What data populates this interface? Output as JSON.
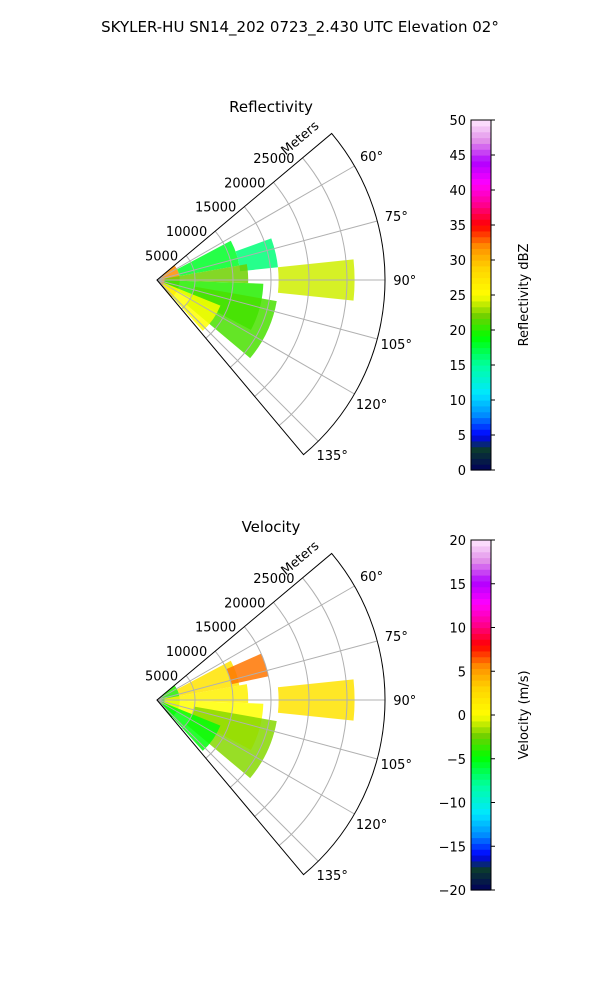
{
  "figure": {
    "suptitle": "SKYLER-HU  SN14_202  0723_2.430 UTC Elevation 02°"
  },
  "chart_data": [
    {
      "type": "polar-sector",
      "title": "Reflectivity",
      "radial_axis_label": "Meters",
      "theta_range_deg": [
        50,
        140
      ],
      "r_max": 30000,
      "r_ticks": [
        5000,
        10000,
        15000,
        20000,
        25000
      ],
      "r_tick_labels": [
        "5000",
        "10000",
        "15000",
        "20000",
        "25000"
      ],
      "theta_ticks": [
        60,
        75,
        90,
        105,
        120,
        135
      ],
      "theta_tick_labels": [
        "60°",
        "75°",
        "90°",
        "105°",
        "120°",
        "135°"
      ],
      "grid": true,
      "colorbar": {
        "label": "Reflectivity dBZ",
        "min": 0,
        "max": 50,
        "ticks": [
          0,
          5,
          10,
          15,
          20,
          25,
          30,
          35,
          40,
          45,
          50
        ],
        "tick_labels": [
          "0",
          "5",
          "10",
          "15",
          "20",
          "25",
          "30",
          "35",
          "40",
          "45",
          "50"
        ]
      },
      "echo_regions": [
        {
          "theta": [
            50,
            140
          ],
          "r": [
            0,
            3000
          ],
          "value": 32
        },
        {
          "theta": [
            62,
            80
          ],
          "r": [
            3000,
            11000
          ],
          "value": 18
        },
        {
          "theta": [
            70,
            84
          ],
          "r": [
            11000,
            16000
          ],
          "value": 16
        },
        {
          "theta": [
            80,
            92
          ],
          "r": [
            1000,
            12000
          ],
          "value": 22
        },
        {
          "theta": [
            92,
            118
          ],
          "r": [
            1000,
            14000
          ],
          "value": 20
        },
        {
          "theta": [
            100,
            130
          ],
          "r": [
            5000,
            16000
          ],
          "value": 21
        },
        {
          "theta": [
            112,
            138
          ],
          "r": [
            1000,
            9000
          ],
          "value": 25
        },
        {
          "theta": [
            84,
            96
          ],
          "r": [
            16000,
            26000
          ],
          "value": 24
        }
      ]
    },
    {
      "type": "polar-sector",
      "title": "Velocity",
      "radial_axis_label": "Meters",
      "theta_range_deg": [
        50,
        140
      ],
      "r_max": 30000,
      "r_ticks": [
        5000,
        10000,
        15000,
        20000,
        25000
      ],
      "r_tick_labels": [
        "5000",
        "10000",
        "15000",
        "20000",
        "25000"
      ],
      "theta_ticks": [
        60,
        75,
        90,
        105,
        120,
        135
      ],
      "theta_tick_labels": [
        "60°",
        "75°",
        "90°",
        "105°",
        "120°",
        "135°"
      ],
      "grid": true,
      "colorbar": {
        "label": "Velocity (m/s)",
        "min": -20,
        "max": 20,
        "ticks": [
          -20,
          -15,
          -10,
          -5,
          0,
          5,
          10,
          15,
          20
        ],
        "tick_labels": [
          "−20",
          "−15",
          "−10",
          "−5",
          "0",
          "5",
          "10",
          "15",
          "20"
        ]
      },
      "echo_regions": [
        {
          "theta": [
            50,
            140
          ],
          "r": [
            0,
            3000
          ],
          "value": -4
        },
        {
          "theta": [
            62,
            80
          ],
          "r": [
            3000,
            11000
          ],
          "value": 2
        },
        {
          "theta": [
            66,
            78
          ],
          "r": [
            10000,
            15000
          ],
          "value": 6
        },
        {
          "theta": [
            80,
            92
          ],
          "r": [
            1000,
            12000
          ],
          "value": 1
        },
        {
          "theta": [
            92,
            118
          ],
          "r": [
            1000,
            14000
          ],
          "value": 0
        },
        {
          "theta": [
            100,
            130
          ],
          "r": [
            5000,
            16000
          ],
          "value": -2
        },
        {
          "theta": [
            112,
            138
          ],
          "r": [
            1000,
            9000
          ],
          "value": -5
        },
        {
          "theta": [
            84,
            96
          ],
          "r": [
            16000,
            26000
          ],
          "value": 2
        }
      ]
    }
  ],
  "colormap": [
    {
      "stop": 0.0,
      "color": "#00005a"
    },
    {
      "stop": 0.06,
      "color": "#0b3b2e"
    },
    {
      "stop": 0.1,
      "color": "#0000ff"
    },
    {
      "stop": 0.16,
      "color": "#0090ff"
    },
    {
      "stop": 0.22,
      "color": "#00e8ff"
    },
    {
      "stop": 0.3,
      "color": "#00ffa0"
    },
    {
      "stop": 0.38,
      "color": "#00ff00"
    },
    {
      "stop": 0.44,
      "color": "#6ed000"
    },
    {
      "stop": 0.5,
      "color": "#ffff00"
    },
    {
      "stop": 0.58,
      "color": "#ffd200"
    },
    {
      "stop": 0.64,
      "color": "#ff8c00"
    },
    {
      "stop": 0.7,
      "color": "#ff0000"
    },
    {
      "stop": 0.76,
      "color": "#ff0090"
    },
    {
      "stop": 0.82,
      "color": "#ff00ff"
    },
    {
      "stop": 0.88,
      "color": "#b000ff"
    },
    {
      "stop": 0.94,
      "color": "#e08ce8"
    },
    {
      "stop": 1.0,
      "color": "#ffe8ff"
    }
  ]
}
